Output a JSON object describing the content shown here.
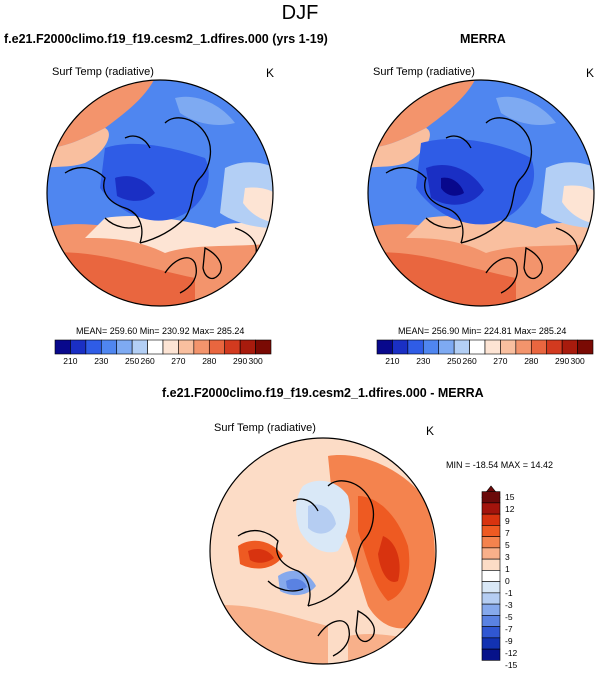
{
  "title": "DJF",
  "panels": [
    {
      "id": "model",
      "title": "f.e21.F2000climo.f19_f19.cesm2_1.dfires.000 (yrs 1-19)",
      "variable": "Surf Temp (radiative)",
      "units": "K",
      "stats": "MEAN= 259.60  Min= 230.92  Max= 285.24",
      "colorbar_labels": [
        "210",
        "230",
        "250",
        "260",
        "270",
        "280",
        "290",
        "300"
      ]
    },
    {
      "id": "obs",
      "title": "MERRA",
      "variable": "Surf Temp (radiative)",
      "units": "K",
      "stats": "MEAN= 256.90  Min= 224.81  Max= 285.24",
      "colorbar_labels": [
        "210",
        "230",
        "250",
        "260",
        "270",
        "280",
        "290",
        "300"
      ]
    },
    {
      "id": "diff",
      "title": "f.e21.F2000climo.f19_f19.cesm2_1.dfires.000 - MERRA",
      "variable": "Surf Temp (radiative)",
      "units": "K",
      "stats": "MIN = -18.54 MAX =  14.42",
      "colorbar_labels": [
        "15",
        "12",
        "9",
        "7",
        "5",
        "3",
        "1",
        "0",
        "-1",
        "-3",
        "-5",
        "-7",
        "-9",
        "-12",
        "-15"
      ]
    }
  ],
  "colors": {
    "abs_scale": [
      "#08088c",
      "#1a2fc4",
      "#2f5ce6",
      "#4f86f0",
      "#7eaaf2",
      "#b3cff5",
      "#ffffff",
      "#fde4d4",
      "#f9bf9f",
      "#f3946c",
      "#e9663f",
      "#d23a1f",
      "#a81b0d",
      "#7a0a04"
    ],
    "diff_scale": [
      "#6b0a0a",
      "#a3140c",
      "#d8330f",
      "#ee5a22",
      "#f4834e",
      "#f8b08a",
      "#fcdcc6",
      "#ffffff",
      "#d9e8f7",
      "#b5cdf2",
      "#86a9ec",
      "#5a82e2",
      "#3057d2",
      "#1232b2",
      "#06128a"
    ]
  }
}
